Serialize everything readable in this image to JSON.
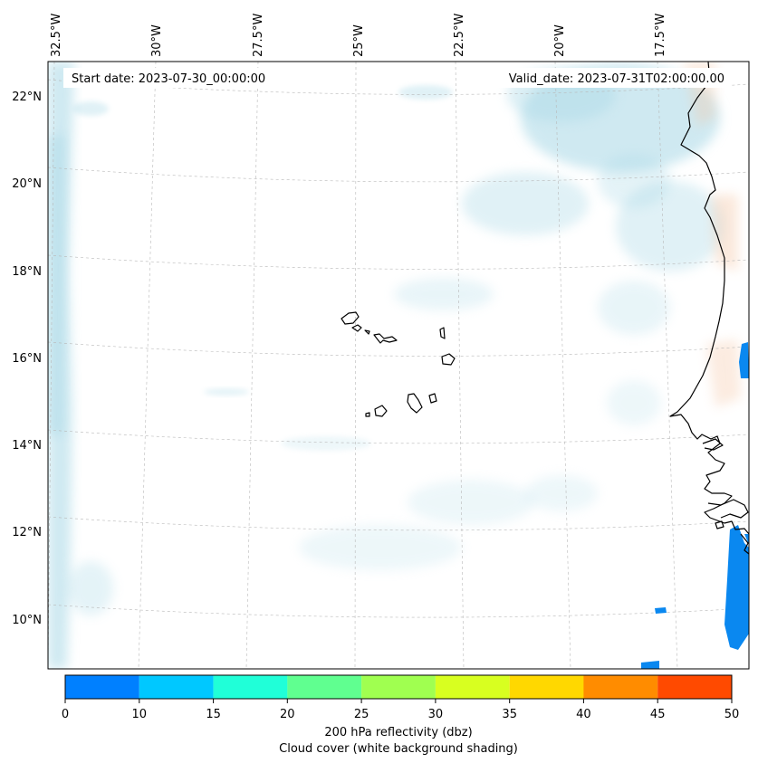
{
  "header": {
    "start_date": "Start date: 2023-07-30_00:00:00",
    "valid_date": "Valid_date: 2023-07-31T02:00:00.00"
  },
  "axes": {
    "lon_labels": [
      "32.5°W",
      "30°W",
      "27.5°W",
      "25°W",
      "22.5°W",
      "20°W",
      "17.5°W"
    ],
    "lat_labels": [
      "22°N",
      "20°N",
      "18°N",
      "16°N",
      "14°N",
      "12°N",
      "10°N"
    ]
  },
  "colorbar": {
    "ticks": [
      "0",
      "10",
      "15",
      "20",
      "25",
      "30",
      "35",
      "40",
      "45",
      "50"
    ],
    "colors": [
      "#0080ff",
      "#00c8ff",
      "#20ffd8",
      "#60ff90",
      "#a0ff50",
      "#d8ff20",
      "#ffd800",
      "#ff8c00",
      "#ff4a00"
    ],
    "title_line1": "200 hPa reflectivity (dbz)",
    "title_line2": "Cloud cover (white background shading)"
  },
  "colors": {
    "cloud": "#a8d8e6",
    "warm": "#f5c8a8",
    "echo": "#0a88f0"
  }
}
